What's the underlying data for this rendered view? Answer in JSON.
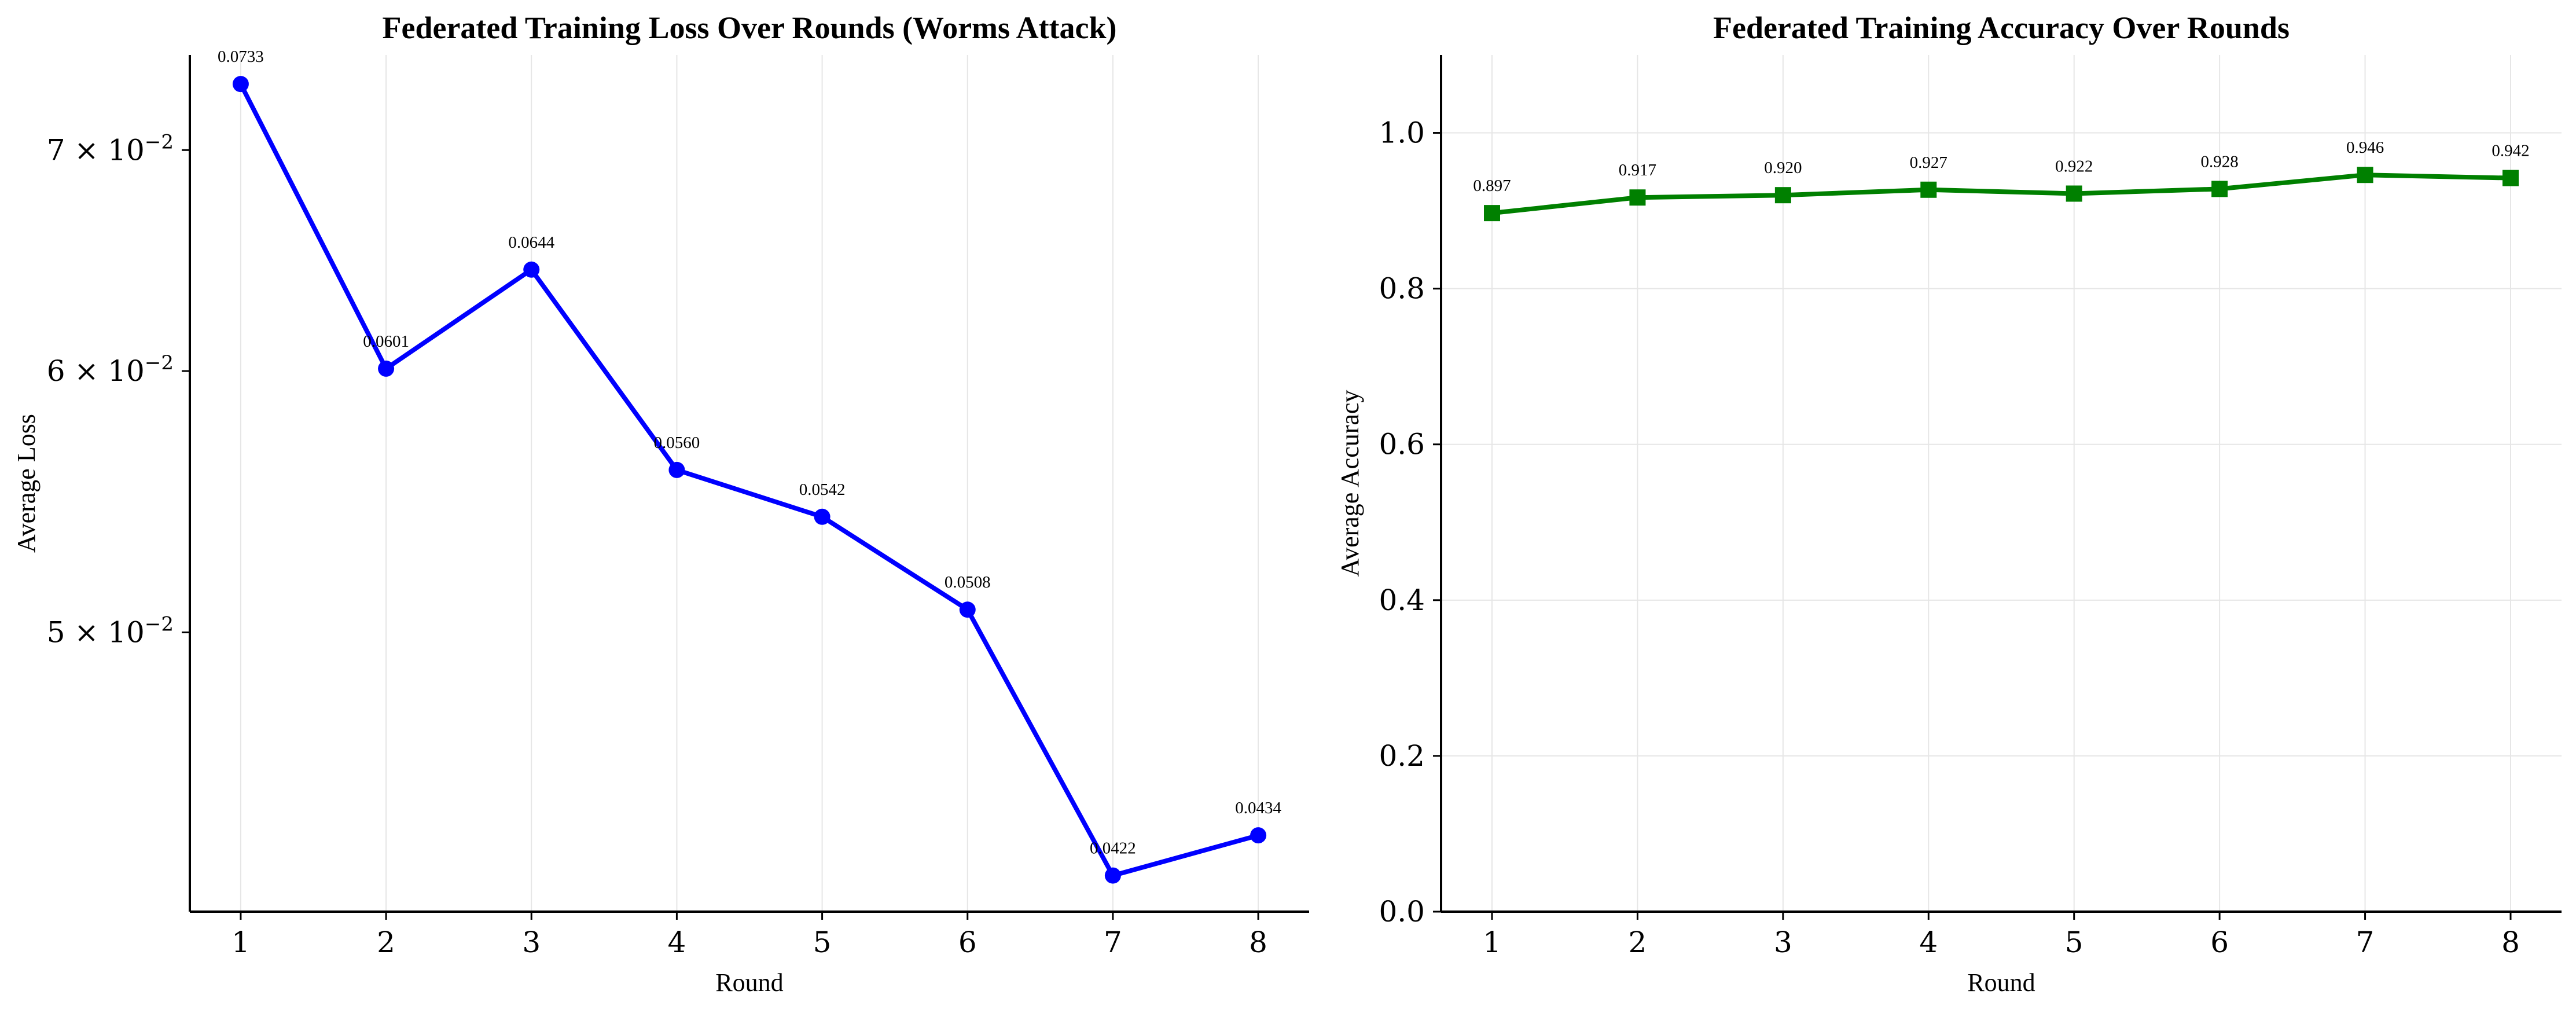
{
  "chart_data": [
    {
      "id": "loss",
      "type": "line",
      "title": "Federated Training Loss Over Rounds (Worms Attack)",
      "xlabel": "Round",
      "ylabel": "Average Loss",
      "yscale": "log",
      "x": [
        1,
        2,
        3,
        4,
        5,
        6,
        7,
        8
      ],
      "series": [
        {
          "values": [
            0.0733,
            0.0601,
            0.0644,
            0.056,
            0.0542,
            0.0508,
            0.0422,
            0.0434
          ],
          "color": "#0000ff",
          "marker": "circle"
        }
      ],
      "data_labels": [
        "0.0733",
        "0.0601",
        "0.0644",
        "0.0560",
        "0.0542",
        "0.0508",
        "0.0422",
        "0.0434"
      ],
      "xlim": [
        0.65,
        8.35
      ],
      "ylim": [
        0.04115,
        0.0748
      ],
      "xticks": [
        1,
        2,
        3,
        4,
        5,
        6,
        7,
        8
      ],
      "yticks": [
        {
          "value": 0.07,
          "base": "7",
          "exp": "−2"
        },
        {
          "value": 0.06,
          "base": "6",
          "exp": "−2"
        },
        {
          "value": 0.05,
          "base": "5",
          "exp": "−2"
        }
      ],
      "grid": "x",
      "legend": "none"
    },
    {
      "id": "acc",
      "type": "line",
      "title": "Federated Training Accuracy Over Rounds",
      "xlabel": "Round",
      "ylabel": "Average Accuracy",
      "yscale": "linear",
      "x": [
        1,
        2,
        3,
        4,
        5,
        6,
        7,
        8
      ],
      "series": [
        {
          "values": [
            0.897,
            0.917,
            0.92,
            0.927,
            0.922,
            0.928,
            0.946,
            0.942
          ],
          "color": "#008000",
          "marker": "square"
        }
      ],
      "data_labels": [
        "0.897",
        "0.917",
        "0.920",
        "0.927",
        "0.922",
        "0.928",
        "0.946",
        "0.942"
      ],
      "xlim": [
        0.65,
        8.35
      ],
      "ylim": [
        0.0,
        1.1
      ],
      "xticks": [
        1,
        2,
        3,
        4,
        5,
        6,
        7,
        8
      ],
      "yticks": [
        {
          "value": 0.0,
          "label": "0.0"
        },
        {
          "value": 0.2,
          "label": "0.2"
        },
        {
          "value": 0.4,
          "label": "0.4"
        },
        {
          "value": 0.6,
          "label": "0.6"
        },
        {
          "value": 0.8,
          "label": "0.8"
        },
        {
          "value": 1.0,
          "label": "1.0"
        }
      ],
      "grid": "both",
      "legend": "none"
    }
  ]
}
